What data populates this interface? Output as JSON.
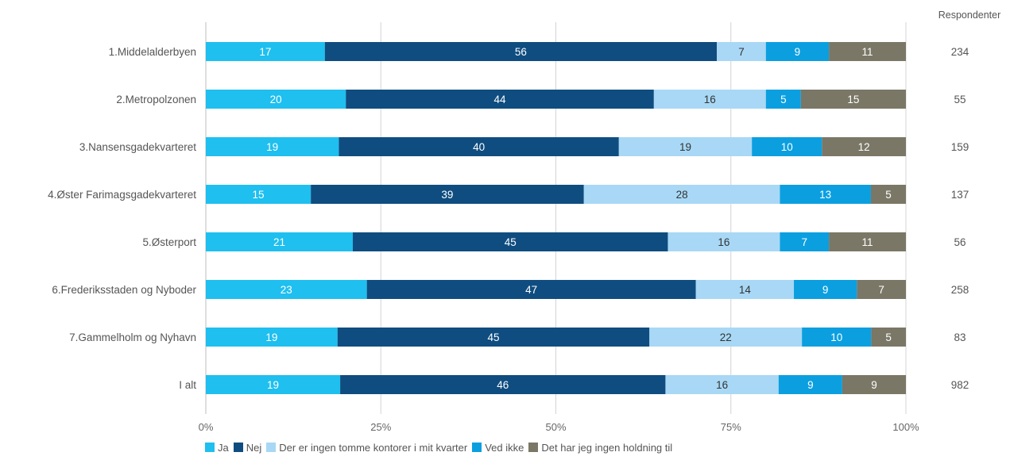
{
  "chart_data": {
    "type": "bar",
    "orientation": "horizontal",
    "stacked": true,
    "percent": true,
    "categories": [
      "1.Middelalderbyen",
      "2.Metropolzonen",
      "3.Nansensgadekvarteret",
      "4.Øster Farimagsgadekvarteret",
      "5.Østerport",
      "6.Frederiksstaden og Nyboder",
      "7.Gammelholm og Nyhavn",
      "I alt"
    ],
    "series": [
      {
        "name": "Ja",
        "color": "#1fbfef",
        "values": [
          17,
          20,
          19,
          15,
          21,
          23,
          19,
          19
        ]
      },
      {
        "name": "Nej",
        "color": "#0f4d80",
        "values": [
          56,
          44,
          40,
          39,
          45,
          47,
          45,
          46
        ]
      },
      {
        "name": "Der er ingen tomme kontorer i mit kvarter",
        "color": "#a8d8f5",
        "values": [
          7,
          16,
          19,
          28,
          16,
          14,
          22,
          16
        ]
      },
      {
        "name": "Ved ikke",
        "color": "#0b9fe0",
        "values": [
          9,
          5,
          10,
          13,
          7,
          9,
          10,
          9
        ]
      },
      {
        "name": "Det har jeg ingen holdning til",
        "color": "#7a7766",
        "values": [
          11,
          15,
          12,
          5,
          11,
          7,
          5,
          9
        ]
      }
    ],
    "respondents_label": "Respondenter",
    "respondents": [
      "234",
      "55",
      "159",
      "137",
      "56",
      "258",
      "83",
      "982"
    ],
    "xlim": [
      0,
      100
    ],
    "x_ticks": [
      "0%",
      "25%",
      "50%",
      "75%",
      "100%"
    ],
    "grid": true,
    "legend_position": "bottom-left"
  }
}
